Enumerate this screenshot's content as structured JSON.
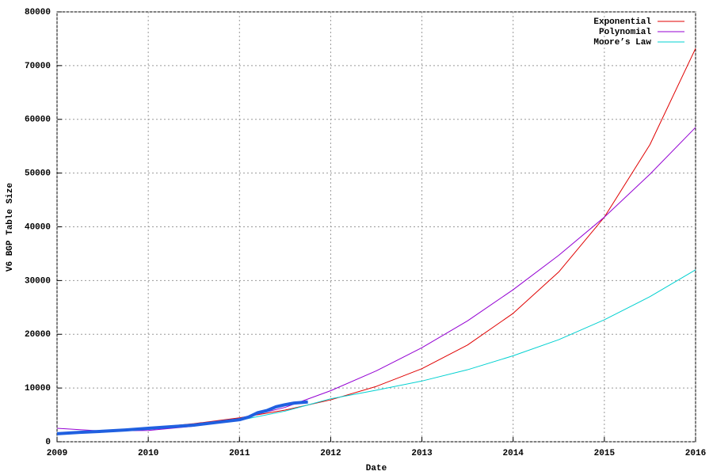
{
  "chart_data": {
    "type": "line",
    "xlabel": "Date",
    "ylabel": "V6 BGP Table Size",
    "xlim": [
      2009,
      2016
    ],
    "xticks": [
      2009,
      2010,
      2011,
      2012,
      2013,
      2014,
      2015,
      2016
    ],
    "ylim": [
      0,
      80000
    ],
    "yticks": [
      0,
      10000,
      20000,
      30000,
      40000,
      50000,
      60000,
      70000,
      80000
    ],
    "grid": true,
    "legend": "top-right",
    "series": [
      {
        "name": "Exponential",
        "color": "#e00000",
        "x": [
          2009,
          2009.5,
          2010,
          2010.5,
          2011,
          2011.5,
          2012,
          2012.5,
          2013,
          2013.5,
          2014,
          2014.5,
          2015,
          2015.5,
          2016
        ],
        "values": [
          1450,
          1920,
          2550,
          3370,
          4450,
          5900,
          7800,
          10300,
          13600,
          18000,
          23900,
          31600,
          41800,
          55300,
          73200
        ]
      },
      {
        "name": "Polynomial",
        "color": "#9400d3",
        "x": [
          2009,
          2009.5,
          2010,
          2010.5,
          2011,
          2011.5,
          2012,
          2012.5,
          2013,
          2013.5,
          2014,
          2014.5,
          2015,
          2015.5,
          2016
        ],
        "values": [
          2500,
          2000,
          2100,
          2900,
          4300,
          6400,
          9500,
          13200,
          17500,
          22500,
          28300,
          34700,
          41800,
          49800,
          58500
        ]
      },
      {
        "name": "Moore’s Law",
        "color": "#00d0d0",
        "x": [
          2009,
          2009.5,
          2010,
          2010.5,
          2011,
          2011.5,
          2012,
          2012.5,
          2013,
          2013.5,
          2014,
          2014.5,
          2015,
          2015.5,
          2016
        ],
        "values": [
          1650,
          2000,
          2500,
          3100,
          4000,
          5700,
          8000,
          9600,
          11300,
          13400,
          16000,
          19000,
          22700,
          27000,
          32000
        ]
      },
      {
        "color": "#2060e0",
        "x": [
          2009,
          2009.25,
          2009.5,
          2009.75,
          2010,
          2010.25,
          2010.5,
          2010.75,
          2011,
          2011.1,
          2011.2,
          2011.3,
          2011.4,
          2011.5,
          2011.6,
          2011.75
        ],
        "values": [
          1500,
          1750,
          1950,
          2200,
          2500,
          2800,
          3100,
          3600,
          4100,
          4600,
          5400,
          5800,
          6500,
          6900,
          7200,
          7400
        ]
      }
    ]
  }
}
